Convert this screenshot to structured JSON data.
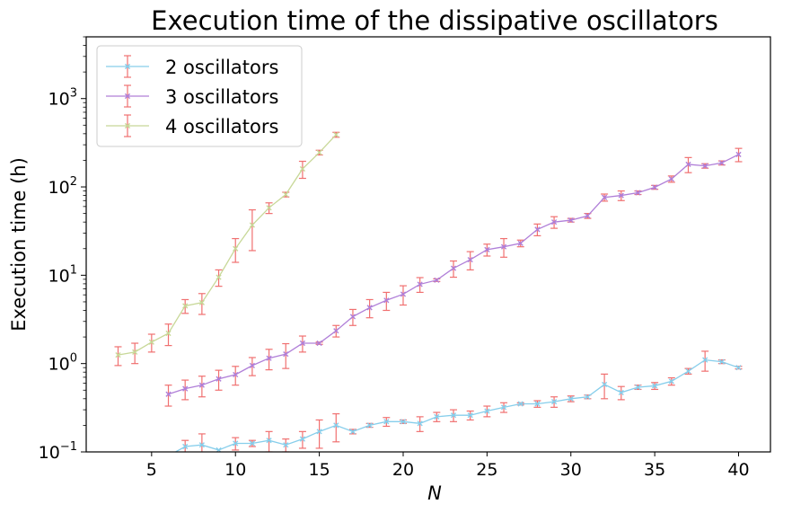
{
  "chart_data": {
    "type": "line",
    "title": "Execution time of the dissipative oscillators",
    "xlabel": "N",
    "ylabel": "Execution time (h)",
    "xlim": [
      1.1,
      41.9
    ],
    "ylim": [
      0.1,
      5000
    ],
    "yscale": "log",
    "xticks": [
      5,
      10,
      15,
      20,
      25,
      30,
      35,
      40
    ],
    "xtick_labels": [
      "5",
      "10",
      "15",
      "20",
      "25",
      "30",
      "35",
      "40"
    ],
    "yticks": [
      0.1,
      1,
      10,
      100,
      1000
    ],
    "ytick_labels": [
      [
        "10",
        "−1"
      ],
      [
        "10",
        "0"
      ],
      [
        "10",
        "1"
      ],
      [
        "10",
        "2"
      ],
      [
        "10",
        "3"
      ]
    ],
    "grid": false,
    "legend": "upper left",
    "errorbar_color": "#f07070",
    "series": [
      {
        "name": "2 oscillators",
        "color": "#87ceeb",
        "marker": "x",
        "x": [
          6,
          7,
          8,
          9,
          10,
          11,
          12,
          13,
          14,
          15,
          16,
          17,
          18,
          19,
          20,
          21,
          22,
          23,
          24,
          25,
          26,
          27,
          28,
          29,
          30,
          31,
          32,
          33,
          34,
          35,
          36,
          37,
          38,
          39,
          40
        ],
        "y": [
          0.09,
          0.115,
          0.12,
          0.105,
          0.125,
          0.125,
          0.135,
          0.12,
          0.14,
          0.17,
          0.2,
          0.17,
          0.2,
          0.22,
          0.22,
          0.21,
          0.25,
          0.26,
          0.26,
          0.29,
          0.32,
          0.35,
          0.35,
          0.37,
          0.4,
          0.42,
          0.58,
          0.47,
          0.54,
          0.56,
          0.63,
          0.82,
          1.1,
          1.05,
          0.9
        ],
        "err": [
          0,
          0.02,
          0.04,
          0,
          0.02,
          0.01,
          0.035,
          0.02,
          0.03,
          0.06,
          0.07,
          0.01,
          0.01,
          0.025,
          0.01,
          0.04,
          0.03,
          0.04,
          0.03,
          0.04,
          0.04,
          0.01,
          0.03,
          0.05,
          0.03,
          0.02,
          0.18,
          0.08,
          0.03,
          0.05,
          0.06,
          0.06,
          0.28,
          0.05,
          0.03
        ]
      },
      {
        "name": "3 oscillators",
        "color": "#b07fd8",
        "marker": "x",
        "x": [
          6,
          7,
          8,
          9,
          10,
          11,
          12,
          13,
          14,
          15,
          16,
          17,
          18,
          19,
          20,
          21,
          22,
          23,
          24,
          25,
          26,
          27,
          28,
          29,
          30,
          31,
          32,
          33,
          34,
          35,
          36,
          37,
          38,
          39,
          40
        ],
        "y": [
          0.45,
          0.52,
          0.57,
          0.67,
          0.75,
          0.95,
          1.15,
          1.28,
          1.7,
          1.7,
          2.35,
          3.4,
          4.3,
          5.2,
          6.1,
          7.9,
          8.8,
          12,
          15,
          19.5,
          21,
          23,
          33,
          40,
          42,
          47,
          76,
          80,
          86,
          99,
          123,
          180,
          173,
          187,
          233
        ],
        "err": [
          0.12,
          0.13,
          0.15,
          0.17,
          0.18,
          0.22,
          0.3,
          0.4,
          0.35,
          0.05,
          0.35,
          0.7,
          1.0,
          1.2,
          1.5,
          1.5,
          0.3,
          2.5,
          3.5,
          3.0,
          5.0,
          2.0,
          5.0,
          6.0,
          2.0,
          3.0,
          7.0,
          10.0,
          4.0,
          5.0,
          10.0,
          35.0,
          10.0,
          10.0,
          40.0
        ]
      },
      {
        "name": "4 oscillators",
        "color": "#c8d898",
        "marker": "x",
        "x": [
          3,
          4,
          5,
          6,
          7,
          8,
          9,
          10,
          11,
          12,
          13,
          14,
          15,
          16
        ],
        "y": [
          1.25,
          1.35,
          1.75,
          2.2,
          4.5,
          4.9,
          9.5,
          20,
          37,
          58,
          82,
          160,
          245,
          390
        ],
        "err": [
          0.3,
          0.35,
          0.4,
          0.6,
          0.8,
          1.3,
          2.0,
          6.0,
          18.0,
          8.0,
          5.0,
          35.0,
          15.0,
          25.0
        ]
      }
    ]
  }
}
